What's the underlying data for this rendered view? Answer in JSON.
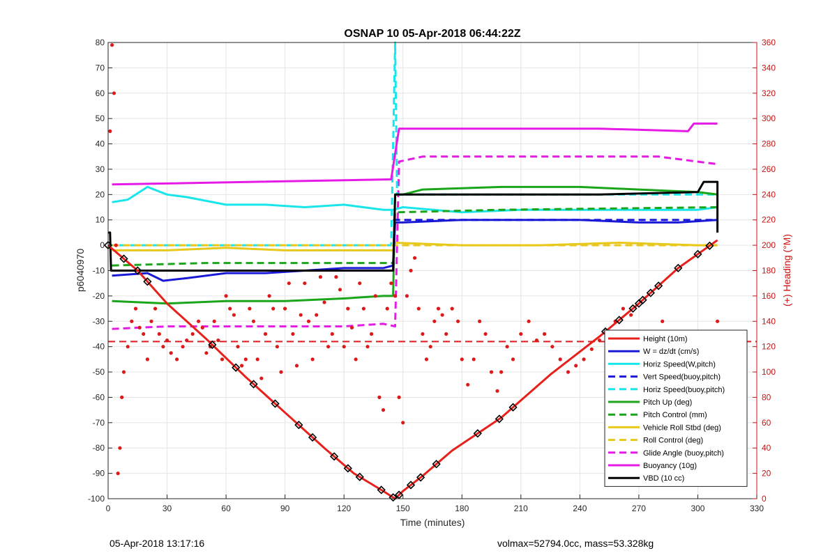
{
  "chart_data": {
    "type": "line",
    "title": "OSNAP 10 05-Apr-2018 06:44:22Z",
    "xlabel": "Time (minutes)",
    "ylabel": "p6040970",
    "y2label": "(+) Heading (°M)",
    "xlim": [
      0,
      330
    ],
    "ylim": [
      -100,
      80
    ],
    "y2lim": [
      0,
      360
    ],
    "x_ticks": [
      0,
      30,
      60,
      90,
      120,
      150,
      180,
      210,
      240,
      270,
      300,
      330
    ],
    "y_ticks": [
      -100,
      -90,
      -80,
      -70,
      -60,
      -50,
      -40,
      -30,
      -20,
      -10,
      0,
      10,
      20,
      30,
      40,
      50,
      60,
      70,
      80
    ],
    "y2_ticks": [
      0,
      20,
      40,
      60,
      80,
      100,
      120,
      140,
      160,
      180,
      200,
      220,
      240,
      260,
      280,
      300,
      320,
      340,
      360
    ],
    "grid": true,
    "legend_position": "bottom-right",
    "colors": {
      "red": "#e8201b",
      "blue": "#1a1ad6",
      "cyan": "#19e6ea",
      "green": "#1aa51a",
      "yellow": "#e8c81a",
      "magenta": "#e619e6",
      "black": "#000000",
      "heading": "#dd1a1a",
      "axis_right": "#cc1111"
    },
    "series": [
      {
        "name": "Height (10m)",
        "color": "#e8201b",
        "style": "solid",
        "x": [
          0,
          15,
          30,
          50,
          70,
          90,
          110,
          125,
          140,
          146,
          150,
          160,
          175,
          200,
          225,
          250,
          270,
          290,
          310
        ],
        "y": [
          0,
          -10,
          -23,
          -37,
          -52,
          -66,
          -80,
          -90,
          -97,
          -100,
          -97,
          -91,
          -81,
          -68,
          -51,
          -36,
          -23,
          -9,
          2
        ]
      },
      {
        "name": "W = dz/dt (cm/s)",
        "color": "#1a1ad6",
        "style": "solid",
        "x": [
          2,
          20,
          28,
          40,
          60,
          80,
          100,
          120,
          140,
          145,
          146,
          150,
          180,
          210,
          240,
          270,
          290,
          310
        ],
        "y": [
          -12,
          -11,
          -14,
          -13,
          -11,
          -11,
          -10,
          -9,
          -9,
          -8,
          9,
          9,
          10,
          10,
          10,
          9,
          9,
          10
        ]
      },
      {
        "name": "Horiz Speed(W,pitch)",
        "color": "#19e6ea",
        "style": "solid",
        "x": [
          2,
          10,
          20,
          30,
          40,
          60,
          80,
          100,
          120,
          140,
          145,
          150,
          180,
          210,
          240,
          270,
          300,
          310
        ],
        "y": [
          17,
          18,
          23,
          20,
          19,
          16,
          16,
          15,
          16,
          14,
          14,
          15,
          13,
          14,
          14,
          14,
          14,
          15
        ]
      },
      {
        "name": "Vert Speed(buoy,pitch)",
        "color": "#1a1ad6",
        "style": "dashed",
        "x": [
          145,
          180,
          220,
          260,
          310
        ],
        "y": [
          10,
          10,
          10,
          10,
          10
        ]
      },
      {
        "name": "Horiz Speed(buoy,pitch)",
        "color": "#19e6ea",
        "style": "dashed",
        "x": [
          0,
          144,
          146,
          147,
          150,
          310
        ],
        "y": [
          0,
          0,
          80,
          20,
          20,
          20
        ]
      },
      {
        "name": "Pitch Up (deg)",
        "color": "#1aa51a",
        "style": "solid",
        "x": [
          2,
          30,
          60,
          90,
          120,
          140,
          145,
          146,
          150,
          160,
          200,
          240,
          270,
          300,
          310
        ],
        "y": [
          -22,
          -23,
          -22,
          -22,
          -21,
          -20,
          -20,
          20,
          20,
          22,
          23,
          23,
          22,
          21,
          20
        ]
      },
      {
        "name": "Pitch Control (mm)",
        "color": "#1aa51a",
        "style": "dashed",
        "x": [
          2,
          50,
          145,
          146,
          200,
          310
        ],
        "y": [
          -8,
          -7,
          -7,
          13,
          14,
          15
        ]
      },
      {
        "name": "Vehicle Roll Stbd (deg)",
        "color": "#e8c81a",
        "style": "solid",
        "x": [
          2,
          30,
          60,
          90,
          120,
          145,
          146,
          180,
          220,
          260,
          300,
          310
        ],
        "y": [
          -2,
          -2,
          -1,
          -2,
          -2,
          -2,
          1,
          0,
          0,
          1,
          0,
          0
        ]
      },
      {
        "name": "Roll Control (deg)",
        "color": "#e8c81a",
        "style": "dashed",
        "x": [
          2,
          145,
          146,
          310
        ],
        "y": [
          0,
          0,
          0,
          0
        ]
      },
      {
        "name": "Glide Angle (buoy,pitch)",
        "color": "#e619e6",
        "style": "dashed",
        "x": [
          2,
          30,
          60,
          90,
          120,
          140,
          146,
          148,
          160,
          200,
          240,
          280,
          310
        ],
        "y": [
          -33,
          -32,
          -32,
          -32,
          -32,
          -31,
          -32,
          33,
          35,
          35,
          35,
          35,
          32
        ]
      },
      {
        "name": "Buoyancy (10g)",
        "color": "#e619e6",
        "style": "solid",
        "x": [
          2,
          144,
          148,
          150,
          200,
          250,
          295,
          298,
          310
        ],
        "y": [
          24,
          26,
          46,
          46,
          46,
          46,
          45,
          48,
          48
        ]
      },
      {
        "name": "VBD (10 cc)",
        "color": "#000000",
        "style": "solid",
        "x": [
          0,
          1,
          1.5,
          2,
          140,
          145,
          146,
          150,
          200,
          250,
          300,
          303,
          310,
          310
        ],
        "y": [
          5,
          5,
          -10,
          -10,
          -10,
          -10,
          20,
          20,
          20,
          20,
          21,
          25,
          25,
          5
        ]
      }
    ],
    "heading": {
      "name": "(+) Heading",
      "color": "#dd1a1a",
      "style": "dots",
      "x": [
        1,
        2,
        3,
        4,
        5,
        6,
        7,
        8,
        10,
        12,
        14,
        16,
        18,
        20,
        22,
        24,
        26,
        28,
        30,
        32,
        35,
        38,
        40,
        43,
        46,
        48,
        50,
        52,
        54,
        56,
        58,
        60,
        62,
        64,
        66,
        68,
        70,
        72,
        74,
        76,
        78,
        80,
        82,
        84,
        86,
        88,
        90,
        92,
        94,
        96,
        98,
        100,
        102,
        104,
        106,
        108,
        110,
        112,
        114,
        116,
        118,
        120,
        122,
        124,
        126,
        128,
        130,
        132,
        134,
        136,
        138,
        140,
        142,
        144,
        146,
        148,
        150,
        152,
        154,
        156,
        158,
        160,
        162,
        164,
        166,
        168,
        170,
        172,
        175,
        178,
        180,
        183,
        186,
        189,
        192,
        195,
        198,
        200,
        203,
        206,
        210,
        214,
        218,
        222,
        226,
        230,
        234,
        238,
        242,
        246,
        250,
        254,
        258,
        262,
        266,
        270,
        274,
        278,
        282,
        286,
        290,
        294,
        298,
        302,
        306,
        310
      ],
      "y": [
        290,
        358,
        320,
        200,
        20,
        40,
        80,
        100,
        120,
        140,
        150,
        135,
        130,
        110,
        140,
        150,
        130,
        120,
        125,
        115,
        110,
        120,
        125,
        130,
        140,
        135,
        115,
        120,
        140,
        125,
        110,
        160,
        150,
        145,
        120,
        105,
        110,
        150,
        140,
        110,
        95,
        130,
        160,
        150,
        120,
        100,
        150,
        170,
        130,
        105,
        145,
        170,
        140,
        110,
        145,
        175,
        155,
        120,
        130,
        175,
        165,
        120,
        150,
        135,
        110,
        170,
        150,
        120,
        130,
        160,
        80,
        70,
        150,
        170,
        160,
        80,
        60,
        160,
        180,
        190,
        150,
        130,
        110,
        120,
        140,
        150,
        145,
        130,
        150,
        140,
        110,
        90,
        110,
        140,
        130,
        100,
        85,
        100,
        120,
        110,
        130,
        140,
        125,
        130,
        120,
        110,
        100,
        105,
        110,
        118,
        125,
        130,
        140,
        150,
        145,
        130,
        110,
        120,
        140,
        120,
        125,
        130,
        120,
        110,
        130,
        140
      ]
    },
    "heading_reference": {
      "color": "#dd1a1a",
      "style": "dashed",
      "y2": 124
    },
    "markers": {
      "style": "black diamonds on Height",
      "x": [
        0,
        8,
        15,
        20,
        53,
        65,
        74,
        85,
        97,
        104,
        115,
        122,
        128,
        139,
        145,
        148,
        154,
        159,
        167,
        188,
        199,
        206,
        253,
        260,
        267,
        270,
        272,
        276,
        280,
        290,
        300,
        306
      ]
    },
    "legend": [
      {
        "label": "Height (10m)",
        "color": "#e8201b",
        "style": "solid"
      },
      {
        "label": "W = dz/dt (cm/s)",
        "color": "#1a1ad6",
        "style": "solid"
      },
      {
        "label": "Horiz Speed(W,pitch)",
        "color": "#19e6ea",
        "style": "solid"
      },
      {
        "label": "Vert Speed(buoy,pitch)",
        "color": "#1a1ad6",
        "style": "dashed"
      },
      {
        "label": "Horiz Speed(buoy,pitch)",
        "color": "#19e6ea",
        "style": "dashed"
      },
      {
        "label": "Pitch Up (deg)",
        "color": "#1aa51a",
        "style": "solid"
      },
      {
        "label": "Pitch Control (mm)",
        "color": "#1aa51a",
        "style": "dashed"
      },
      {
        "label": "Vehicle Roll Stbd (deg)",
        "color": "#e8c81a",
        "style": "solid"
      },
      {
        "label": "Roll Control (deg)",
        "color": "#e8c81a",
        "style": "dashed"
      },
      {
        "label": "Glide Angle (buoy,pitch)",
        "color": "#e619e6",
        "style": "dashed"
      },
      {
        "label": "Buoyancy (10g)",
        "color": "#e619e6",
        "style": "solid"
      },
      {
        "label": "VBD (10 cc)",
        "color": "#000000",
        "style": "solid"
      }
    ]
  },
  "footer": {
    "left": "05-Apr-2018 13:17:16",
    "right": "volmax=52794.0cc, mass=53.328kg"
  }
}
